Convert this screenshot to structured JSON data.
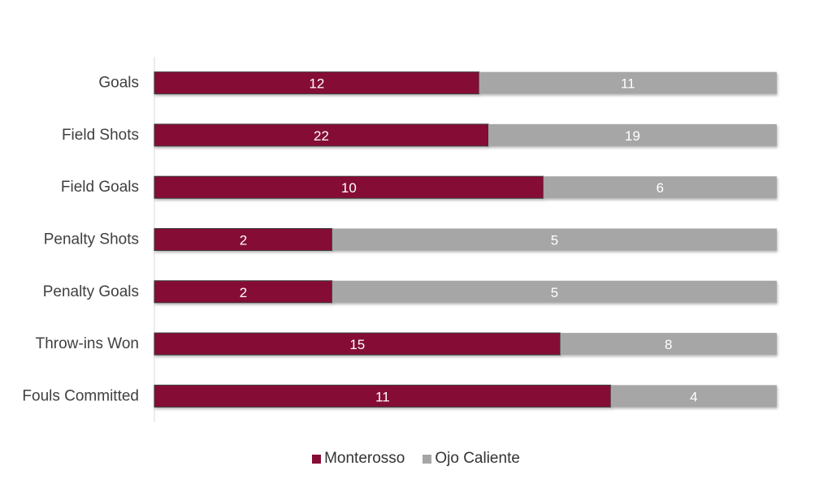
{
  "chart_data": {
    "type": "bar",
    "orientation": "horizontal",
    "stacked": "100%",
    "categories": [
      "Goals",
      "Field Shots",
      "Field Goals",
      "Penalty Shots",
      "Penalty Goals",
      "Throw-ins Won",
      "Fouls Committed"
    ],
    "series": [
      {
        "name": "Monterosso",
        "color": "#850d35",
        "values": [
          12,
          22,
          10,
          2,
          2,
          15,
          11
        ]
      },
      {
        "name": "Ojo Caliente",
        "color": "#a6a6a6",
        "values": [
          11,
          19,
          6,
          5,
          5,
          8,
          4
        ]
      }
    ],
    "data_labels": true,
    "grid": false,
    "legend_position": "bottom",
    "title": "",
    "xlabel": "",
    "ylabel": ""
  },
  "legend": {
    "items": [
      {
        "label": "Monterosso",
        "color": "#850d35"
      },
      {
        "label": "Ojo Caliente",
        "color": "#a6a6a6"
      }
    ]
  }
}
